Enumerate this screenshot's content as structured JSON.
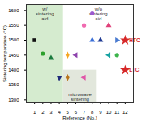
{
  "chart_data": {
    "type": "scatter",
    "x_label": "Reference (No.)",
    "y_label": "Sintering temperature (°C)",
    "xlim": [
      0,
      13
    ],
    "xticks": [
      1,
      2,
      3,
      4,
      5,
      6,
      7,
      8,
      9,
      10,
      11,
      12
    ],
    "ylim": [
      1290,
      1620
    ],
    "yticks": [
      1300,
      1350,
      1400,
      1450,
      1500,
      1550,
      1600
    ],
    "grid": false,
    "regions": [
      {
        "label": "w/o sintering aid",
        "x": [
          4.5,
          13
        ],
        "y": [
          1290,
          1620
        ],
        "color": "#ffffff"
      },
      {
        "label": "w/ sintering aid",
        "x": [
          0,
          4.5
        ],
        "y": [
          1290,
          1620
        ],
        "color": "#d5ebcf"
      },
      {
        "label": "microwave sintering",
        "x": [
          4.5,
          8.5
        ],
        "y": [
          1290,
          1400
        ],
        "color": "#e2e7dc"
      }
    ],
    "series": [
      {
        "x": [
          1
        ],
        "values": [
          1500
        ],
        "color": "#111111",
        "marker": "square"
      },
      {
        "x": [
          2
        ],
        "values": [
          1455
        ],
        "color": "#2ca02c",
        "marker": "circle"
      },
      {
        "x": [
          3
        ],
        "values": [
          1440
        ],
        "color": "#1b7a3e",
        "marker": "triangle"
      },
      {
        "x": [
          4
        ],
        "values": [
          1375
        ],
        "color": "#1f2a7a",
        "marker": "triangle-down"
      },
      {
        "x": [
          5
        ],
        "values": [
          1375
        ],
        "color": "#b8741a",
        "marker": "diamond"
      },
      {
        "x": [
          5
        ],
        "values": [
          1450
        ],
        "color": "#f5a623",
        "marker": "diamond"
      },
      {
        "x": [
          6
        ],
        "values": [
          1450
        ],
        "color": "#8e44ad",
        "marker": "triangle-left"
      },
      {
        "x": [
          7
        ],
        "values": [
          1375
        ],
        "color": "#e056a8",
        "marker": "triangle-left"
      },
      {
        "x": [
          7
        ],
        "values": [
          1550
        ],
        "color": "#f06ab0",
        "marker": "circle"
      },
      {
        "x": [
          8
        ],
        "values": [
          1590
        ],
        "color": "#9b59d0",
        "marker": "circle"
      },
      {
        "x": [
          8
        ],
        "values": [
          1500
        ],
        "color": "#3a6fd8",
        "marker": "triangle"
      },
      {
        "x": [
          9
        ],
        "values": [
          1500
        ],
        "color": "#1f3a93",
        "marker": "triangle"
      },
      {
        "x": [
          10
        ],
        "values": [
          1550
        ],
        "color": "#e0407a",
        "marker": "triangle"
      },
      {
        "x": [
          10
        ],
        "values": [
          1450
        ],
        "color": "#17a2a2",
        "marker": "triangle-left"
      },
      {
        "x": [
          11
        ],
        "values": [
          1450
        ],
        "color": "#3cb44b",
        "marker": "circle"
      },
      {
        "x": [
          11
        ],
        "values": [
          1500
        ],
        "color": "#4a7bd0",
        "marker": "triangle-right"
      },
      {
        "x": [
          12,
          12
        ],
        "values": [
          1500,
          1400
        ],
        "color": "#d62728",
        "marker": "star"
      }
    ],
    "annotations": [
      {
        "text": "HTC",
        "x": 12,
        "y": 1500,
        "color": "#d62728"
      },
      {
        "text": "LTC",
        "x": 12,
        "y": 1400,
        "color": "#d62728"
      }
    ]
  }
}
